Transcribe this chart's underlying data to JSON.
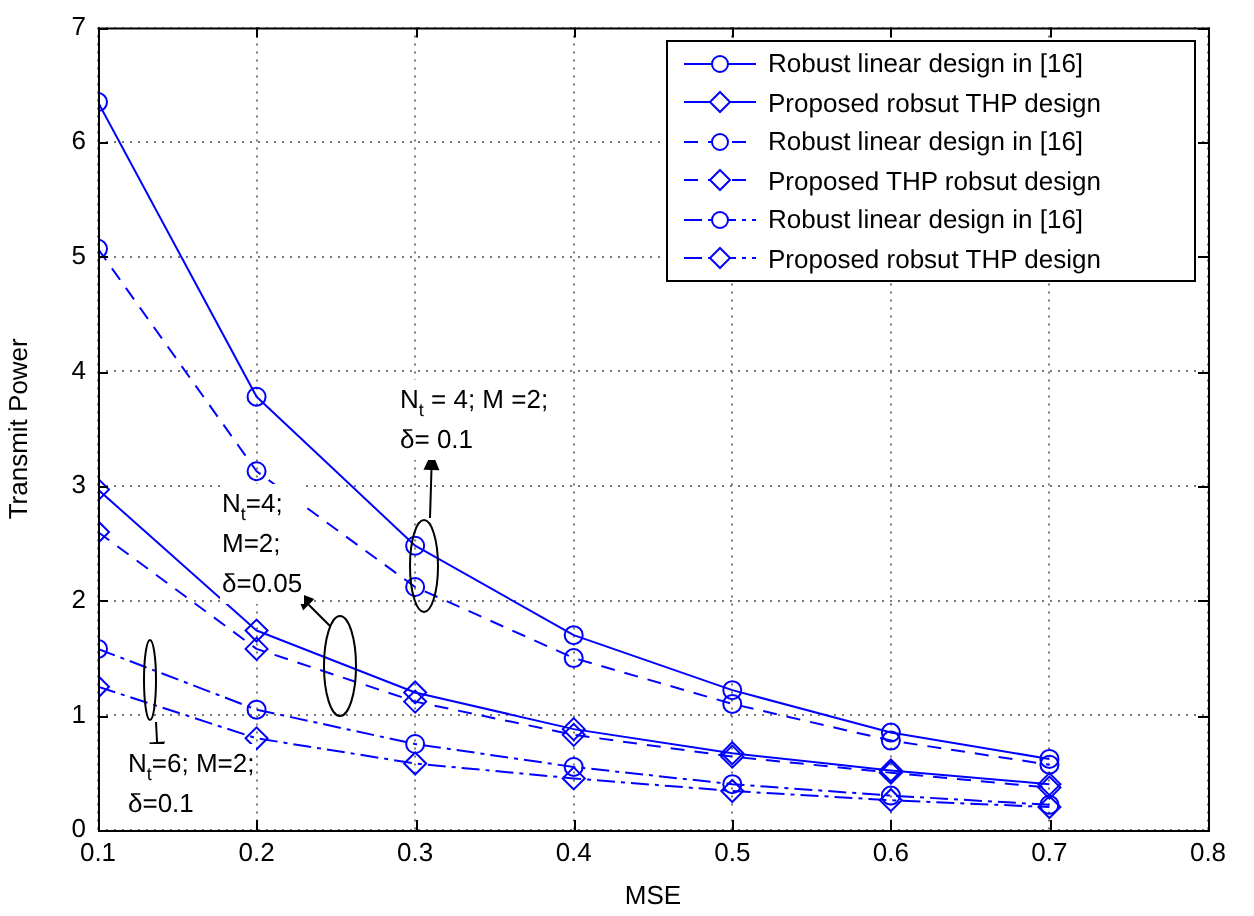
{
  "chart_data": {
    "type": "line",
    "xlabel": "MSE",
    "ylabel": "Transmit Power",
    "x": [
      0.1,
      0.2,
      0.3,
      0.4,
      0.5,
      0.6,
      0.7
    ],
    "xlim": [
      0.1,
      0.8
    ],
    "xticks": [
      0.1,
      0.2,
      0.3,
      0.4,
      0.5,
      0.6,
      0.7,
      0.8
    ],
    "ylim": [
      0,
      7
    ],
    "yticks": [
      0,
      1,
      2,
      3,
      4,
      5,
      6,
      7
    ],
    "grid": true,
    "legend": "top right",
    "series": [
      {
        "name": "Robust linear design in [16]",
        "color": "#0000ff",
        "marker": "circle",
        "line_style": "solid",
        "values": [
          6.35,
          3.78,
          2.48,
          1.7,
          1.22,
          0.85,
          0.62
        ]
      },
      {
        "name": "Proposed robsut THP design",
        "color": "#0000ff",
        "marker": "diamond",
        "line_style": "solid",
        "values": [
          2.97,
          1.74,
          1.2,
          0.88,
          0.67,
          0.52,
          0.4
        ]
      },
      {
        "name": "Robust linear design in [16]",
        "color": "#0000ff",
        "marker": "circle",
        "line_style": "dashed",
        "values": [
          5.07,
          3.13,
          2.12,
          1.5,
          1.1,
          0.78,
          0.57
        ]
      },
      {
        "name": "Proposed THP robsut design",
        "color": "#0000ff",
        "marker": "diamond",
        "line_style": "dashed",
        "values": [
          2.6,
          1.58,
          1.12,
          0.83,
          0.64,
          0.5,
          0.37
        ]
      },
      {
        "name": "Robust linear design in [16]",
        "color": "#0000ff",
        "marker": "circle",
        "line_style": "dashdot",
        "values": [
          1.58,
          1.05,
          0.75,
          0.55,
          0.4,
          0.3,
          0.22
        ]
      },
      {
        "name": "Proposed robsut THP design",
        "color": "#0000ff",
        "marker": "diamond",
        "line_style": "dashdot",
        "values": [
          1.25,
          0.8,
          0.58,
          0.45,
          0.34,
          0.26,
          0.2
        ]
      }
    ],
    "annotations": [
      "N$_{t}$ = 4; M =2;\nδ= 0.1",
      "N$_{t}$=4;\nM=2;\nδ=0.05",
      "N$_{t}$=6; M=2;\nδ=0.1"
    ]
  }
}
